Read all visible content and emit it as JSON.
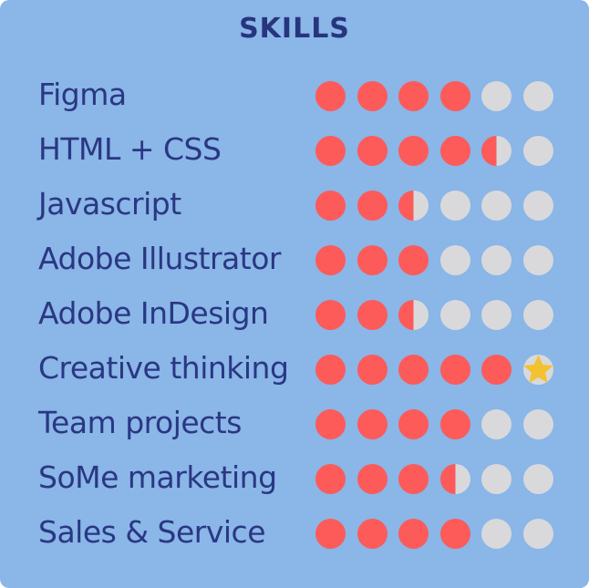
{
  "title": "SKILLS",
  "colors": {
    "background": "#8ab6e8",
    "text": "#2a3783",
    "filled": "#fd5a5a",
    "empty": "#d9d9db",
    "star": "#f2c230"
  },
  "max_rating": 6,
  "skills": [
    {
      "name": "Figma",
      "rating": 4
    },
    {
      "name": "HTML + CSS",
      "rating": 4.5
    },
    {
      "name": "Javascript",
      "rating": 2.5
    },
    {
      "name": "Adobe Illustrator",
      "rating": 3
    },
    {
      "name": "Adobe InDesign",
      "rating": 2.5
    },
    {
      "name": "Creative thinking",
      "rating": 5,
      "star": true,
      "star_icon": "star-icon"
    },
    {
      "name": "Team projects",
      "rating": 4
    },
    {
      "name": "SoMe marketing",
      "rating": 3.5
    },
    {
      "name": "Sales & Service",
      "rating": 4
    }
  ]
}
